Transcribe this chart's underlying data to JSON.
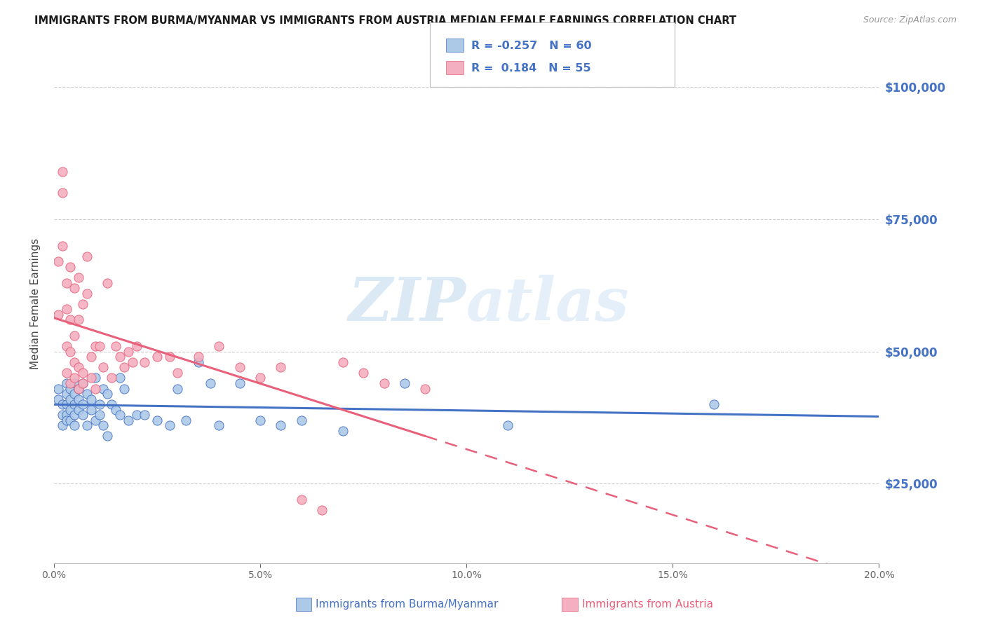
{
  "title": "IMMIGRANTS FROM BURMA/MYANMAR VS IMMIGRANTS FROM AUSTRIA MEDIAN FEMALE EARNINGS CORRELATION CHART",
  "source": "Source: ZipAtlas.com",
  "ylabel": "Median Female Earnings",
  "y_ticks": [
    25000,
    50000,
    75000,
    100000
  ],
  "y_tick_labels": [
    "$25,000",
    "$50,000",
    "$75,000",
    "$100,000"
  ],
  "x_min": 0.0,
  "x_max": 0.2,
  "y_min": 10000,
  "y_max": 108000,
  "r_burma": -0.257,
  "n_burma": 60,
  "r_austria": 0.184,
  "n_austria": 55,
  "color_burma_fill": "#adc9e8",
  "color_austria_fill": "#f4b0c0",
  "color_burma_line": "#4472c4",
  "color_austria_line": "#e8607a",
  "color_label_blue": "#4472c4",
  "color_label_pink": "#e8607a",
  "watermark_color": "#c5ddf2",
  "burma_x": [
    0.001,
    0.001,
    0.002,
    0.002,
    0.002,
    0.003,
    0.003,
    0.003,
    0.003,
    0.003,
    0.004,
    0.004,
    0.004,
    0.004,
    0.005,
    0.005,
    0.005,
    0.005,
    0.005,
    0.006,
    0.006,
    0.006,
    0.007,
    0.007,
    0.007,
    0.008,
    0.008,
    0.009,
    0.009,
    0.01,
    0.01,
    0.011,
    0.011,
    0.012,
    0.012,
    0.013,
    0.013,
    0.014,
    0.015,
    0.016,
    0.016,
    0.017,
    0.018,
    0.02,
    0.022,
    0.025,
    0.028,
    0.03,
    0.032,
    0.035,
    0.038,
    0.04,
    0.045,
    0.05,
    0.055,
    0.06,
    0.07,
    0.085,
    0.11,
    0.16
  ],
  "burma_y": [
    43000,
    41000,
    40000,
    38000,
    36000,
    42000,
    40000,
    38000,
    44000,
    37000,
    41000,
    39000,
    43000,
    37000,
    42000,
    40000,
    44000,
    38000,
    36000,
    41000,
    39000,
    43000,
    40000,
    38000,
    44000,
    42000,
    36000,
    39000,
    41000,
    45000,
    37000,
    40000,
    38000,
    43000,
    36000,
    42000,
    34000,
    40000,
    39000,
    45000,
    38000,
    43000,
    37000,
    38000,
    38000,
    37000,
    36000,
    43000,
    37000,
    48000,
    44000,
    36000,
    44000,
    37000,
    36000,
    37000,
    35000,
    44000,
    36000,
    40000
  ],
  "austria_x": [
    0.001,
    0.001,
    0.002,
    0.002,
    0.002,
    0.003,
    0.003,
    0.003,
    0.003,
    0.004,
    0.004,
    0.004,
    0.004,
    0.005,
    0.005,
    0.005,
    0.005,
    0.006,
    0.006,
    0.006,
    0.006,
    0.007,
    0.007,
    0.007,
    0.008,
    0.008,
    0.009,
    0.009,
    0.01,
    0.01,
    0.011,
    0.012,
    0.013,
    0.014,
    0.015,
    0.016,
    0.017,
    0.018,
    0.019,
    0.02,
    0.022,
    0.025,
    0.028,
    0.03,
    0.035,
    0.04,
    0.045,
    0.05,
    0.055,
    0.06,
    0.065,
    0.07,
    0.075,
    0.08,
    0.09
  ],
  "austria_y": [
    67000,
    57000,
    70000,
    80000,
    84000,
    63000,
    58000,
    51000,
    46000,
    66000,
    50000,
    56000,
    44000,
    62000,
    53000,
    48000,
    45000,
    64000,
    56000,
    47000,
    43000,
    59000,
    46000,
    44000,
    68000,
    61000,
    49000,
    45000,
    51000,
    43000,
    51000,
    47000,
    63000,
    45000,
    51000,
    49000,
    47000,
    50000,
    48000,
    51000,
    48000,
    49000,
    49000,
    46000,
    49000,
    51000,
    47000,
    45000,
    47000,
    22000,
    20000,
    48000,
    46000,
    44000,
    43000
  ]
}
